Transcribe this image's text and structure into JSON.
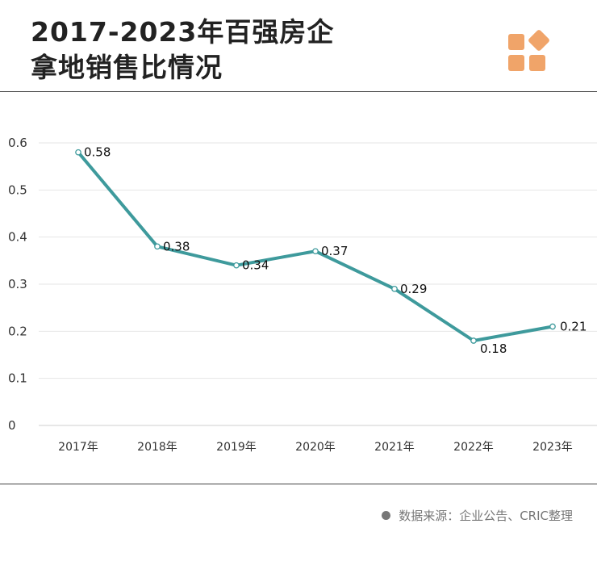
{
  "header": {
    "title_line1": "2017-2023年百强房企",
    "title_line2": "拿地销售比情况"
  },
  "logo": {
    "icon": "four-tile-logo",
    "color": "#F0A469"
  },
  "source": {
    "text": "数据来源：企业公告、CRIC整理"
  },
  "chart_data": {
    "type": "line",
    "title": "2017-2023年百强房企拿地销售比情况",
    "xlabel": "",
    "ylabel": "",
    "categories": [
      "2017年",
      "2018年",
      "2019年",
      "2020年",
      "2021年",
      "2022年",
      "2023年"
    ],
    "series": [
      {
        "values": [
          0.58,
          0.38,
          0.34,
          0.37,
          0.29,
          0.18,
          0.21
        ],
        "labels": [
          "0.58",
          "0.38",
          "0.34",
          "0.37",
          "0.29",
          "0.18",
          "0.21"
        ],
        "color": "#3E9A9C"
      }
    ],
    "ylim": [
      0,
      0.6
    ],
    "yticks": [
      0,
      0.1,
      0.2,
      0.3,
      0.4,
      0.5,
      0.6
    ],
    "ytick_labels": [
      "0",
      "0.1",
      "0.2",
      "0.3",
      "0.4",
      "0.5",
      "0.6"
    ],
    "grid": true,
    "legend": "none"
  }
}
